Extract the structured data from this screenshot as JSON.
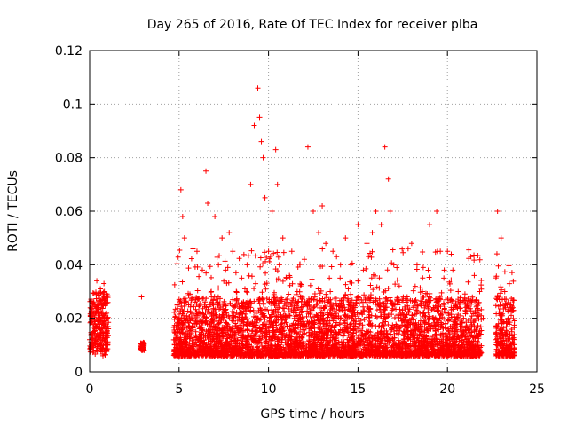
{
  "chart_data": {
    "type": "scatter",
    "title": "Day 265 of 2016, Rate Of TEC Index for receiver plba",
    "xlabel": "GPS time / hours",
    "ylabel": "ROTI / TECUs",
    "xlim": [
      0,
      25
    ],
    "ylim": [
      0,
      0.12
    ],
    "x_ticks": [
      0,
      5,
      10,
      15,
      20,
      25
    ],
    "x_tick_labels": [
      "0",
      "5",
      "10",
      "15",
      "20",
      "25"
    ],
    "y_ticks": [
      0,
      0.02,
      0.04,
      0.06,
      0.08,
      0.1,
      0.12
    ],
    "y_tick_labels": [
      "0",
      "0.02",
      "0.04",
      "0.06",
      "0.08",
      "0.1",
      "0.12"
    ],
    "grid": true,
    "marker": "+",
    "color": "#ff0000",
    "note": "Dense point cloud summarized; outliers listed individually",
    "series": [
      {
        "name": "ROTI",
        "x": [
          0.0,
          0.2,
          0.4,
          0.5,
          0.6,
          0.7,
          0.8,
          0.9,
          1.0,
          2.9,
          3.0,
          4.8,
          5.0,
          5.1,
          5.2,
          5.3,
          5.4,
          5.5,
          5.7,
          6.0,
          6.3,
          6.5,
          6.6,
          6.8,
          7.0,
          7.2,
          7.4,
          7.6,
          7.8,
          8.0,
          8.2,
          8.5,
          8.8,
          9.0,
          9.2,
          9.4,
          9.5,
          9.6,
          9.7,
          9.8,
          10.0,
          10.2,
          10.4,
          10.5,
          10.6,
          10.8,
          11.0,
          11.3,
          11.6,
          12.0,
          12.2,
          12.5,
          12.8,
          13.0,
          13.2,
          13.4,
          13.6,
          13.8,
          14.0,
          14.3,
          14.6,
          15.0,
          15.3,
          15.5,
          15.8,
          16.0,
          16.3,
          16.5,
          16.7,
          16.8,
          17.0,
          17.4,
          17.8,
          18.0,
          18.3,
          18.6,
          19.0,
          19.4,
          19.6,
          19.8,
          20.0,
          20.3,
          20.6,
          20.9,
          21.3,
          21.5,
          21.8,
          22.0,
          22.8,
          23.0,
          23.2,
          23.4,
          23.6
        ],
        "y": [
          0.012,
          0.015,
          0.034,
          0.02,
          0.031,
          0.025,
          0.033,
          0.018,
          0.01,
          0.028,
          0.009,
          0.012,
          0.02,
          0.068,
          0.058,
          0.05,
          0.026,
          0.015,
          0.02,
          0.045,
          0.038,
          0.075,
          0.063,
          0.03,
          0.058,
          0.04,
          0.05,
          0.038,
          0.052,
          0.045,
          0.03,
          0.035,
          0.04,
          0.07,
          0.092,
          0.106,
          0.095,
          0.086,
          0.08,
          0.065,
          0.045,
          0.06,
          0.083,
          0.07,
          0.04,
          0.05,
          0.035,
          0.045,
          0.03,
          0.042,
          0.084,
          0.06,
          0.052,
          0.062,
          0.048,
          0.035,
          0.045,
          0.043,
          0.035,
          0.05,
          0.04,
          0.055,
          0.038,
          0.048,
          0.052,
          0.06,
          0.055,
          0.084,
          0.072,
          0.06,
          0.04,
          0.02,
          0.046,
          0.048,
          0.04,
          0.03,
          0.055,
          0.06,
          0.045,
          0.035,
          0.045,
          0.038,
          0.03,
          0.02,
          0.043,
          0.036,
          0.03,
          0.02,
          0.06,
          0.05,
          0.03,
          0.02,
          0.015
        ]
      }
    ]
  }
}
